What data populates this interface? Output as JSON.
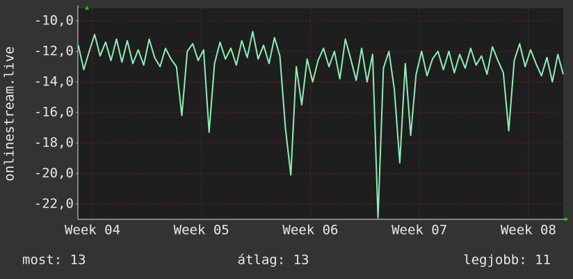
{
  "chart_data": {
    "type": "line",
    "y_label": "onlinestream.live",
    "x": [
      3.87,
      3.92,
      3.97,
      4.02,
      4.07,
      4.12,
      4.17,
      4.22,
      4.27,
      4.32,
      4.37,
      4.42,
      4.47,
      4.52,
      4.57,
      4.62,
      4.67,
      4.72,
      4.77,
      4.82,
      4.87,
      4.92,
      4.97,
      5.02,
      5.07,
      5.12,
      5.17,
      5.22,
      5.27,
      5.32,
      5.37,
      5.42,
      5.47,
      5.52,
      5.57,
      5.62,
      5.67,
      5.72,
      5.77,
      5.82,
      5.87,
      5.92,
      5.97,
      6.02,
      6.07,
      6.12,
      6.17,
      6.22,
      6.27,
      6.32,
      6.37,
      6.42,
      6.47,
      6.52,
      6.57,
      6.62,
      6.67,
      6.72,
      6.77,
      6.82,
      6.87,
      6.92,
      6.97,
      7.02,
      7.07,
      7.12,
      7.17,
      7.22,
      7.27,
      7.32,
      7.37,
      7.42,
      7.47,
      7.52,
      7.57,
      7.62,
      7.67,
      7.72,
      7.77,
      7.82,
      7.87,
      7.92,
      7.97,
      8.02,
      8.07,
      8.12,
      8.17,
      8.22,
      8.27,
      8.32
    ],
    "series": [
      {
        "name": null,
        "color": "#8cf0b4",
        "values": [
          -11.6,
          -13.2,
          -12.0,
          -10.9,
          -12.3,
          -11.4,
          -12.6,
          -11.2,
          -12.7,
          -11.3,
          -12.8,
          -11.9,
          -12.9,
          -11.2,
          -12.4,
          -13.0,
          -11.8,
          -12.5,
          -13.0,
          -16.2,
          -12.0,
          -11.5,
          -12.6,
          -11.9,
          -17.3,
          -12.8,
          -11.4,
          -12.5,
          -11.8,
          -12.9,
          -11.3,
          -12.4,
          -10.7,
          -12.5,
          -11.6,
          -12.8,
          -11.1,
          -12.3,
          -17.0,
          -20.1,
          -13.0,
          -15.5,
          -12.5,
          -14.0,
          -12.6,
          -11.8,
          -13.0,
          -12.0,
          -13.8,
          -11.2,
          -12.5,
          -13.9,
          -11.8,
          -14.0,
          -12.2,
          -22.9,
          -13.1,
          -12.0,
          -14.5,
          -19.3,
          -12.8,
          -17.5,
          -13.5,
          -12.0,
          -13.6,
          -12.5,
          -12.0,
          -13.2,
          -12.0,
          -13.4,
          -12.2,
          -13.1,
          -11.8,
          -12.9,
          -12.3,
          -13.5,
          -11.7,
          -12.6,
          -13.4,
          -17.2,
          -12.6,
          -11.5,
          -13.0,
          -11.9,
          -12.8,
          -13.6,
          -12.4,
          -14.0,
          -12.2,
          -13.5
        ]
      }
    ],
    "xlim": [
      3.866,
      8.32
    ],
    "xticks": [
      {
        "value": 4,
        "label": "Week 04"
      },
      {
        "value": 5,
        "label": "Week 05"
      },
      {
        "value": 6,
        "label": "Week 06"
      },
      {
        "value": 7,
        "label": "Week 07"
      },
      {
        "value": 8,
        "label": "Week 08"
      }
    ],
    "ylim": [
      -23,
      -9.18
    ],
    "yticks": [
      {
        "value": -10,
        "label": "-10,0"
      },
      {
        "value": -12,
        "label": "-12,0"
      },
      {
        "value": -14,
        "label": "-14,0"
      },
      {
        "value": -16,
        "label": "-16,0"
      },
      {
        "value": -18,
        "label": "-18,0"
      },
      {
        "value": -20,
        "label": "-20,0"
      },
      {
        "value": -22,
        "label": "-22,0"
      }
    ],
    "grid": true,
    "footer": [
      "most: 13",
      "átlag: 13",
      "legjobb: 11"
    ]
  }
}
